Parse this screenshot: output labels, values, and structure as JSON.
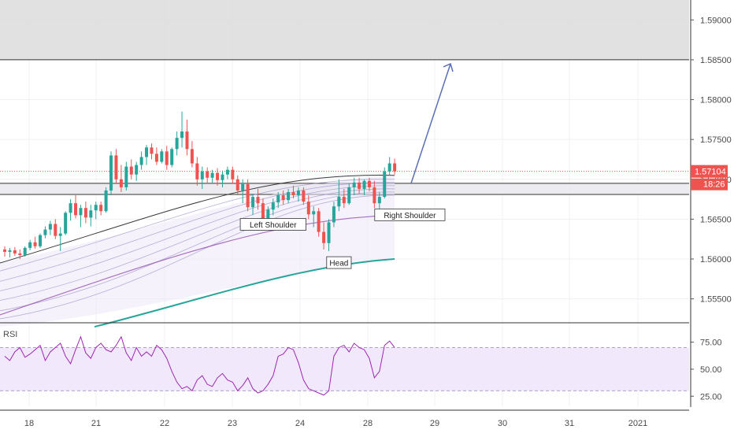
{
  "chart_data": [
    {
      "type": "candlestick",
      "title": "",
      "xlabel": "",
      "ylabel": "",
      "ylim": [
        1.552,
        1.5925
      ],
      "x_ticks": [
        "18",
        "21",
        "22",
        "23",
        "24",
        "28",
        "29",
        "30",
        "31",
        "2021"
      ],
      "y_ticks": [
        "1.55500",
        "1.56000",
        "1.56500",
        "1.57000",
        "1.57500",
        "1.58000",
        "1.58500",
        "1.59000"
      ],
      "last_price_label": "1.57104",
      "countdown_label": "18:26",
      "grid": true,
      "candles": [
        {
          "o": 1.5612,
          "h": 1.5616,
          "l": 1.5603,
          "c": 1.5609
        },
        {
          "o": 1.5609,
          "h": 1.5614,
          "l": 1.5602,
          "c": 1.5611
        },
        {
          "o": 1.5611,
          "h": 1.5615,
          "l": 1.5604,
          "c": 1.5607
        },
        {
          "o": 1.5607,
          "h": 1.5612,
          "l": 1.56,
          "c": 1.5605
        },
        {
          "o": 1.5605,
          "h": 1.5616,
          "l": 1.5603,
          "c": 1.5614
        },
        {
          "o": 1.5614,
          "h": 1.5624,
          "l": 1.5611,
          "c": 1.5621
        },
        {
          "o": 1.5621,
          "h": 1.5628,
          "l": 1.5613,
          "c": 1.5616
        },
        {
          "o": 1.5616,
          "h": 1.5632,
          "l": 1.5614,
          "c": 1.563
        },
        {
          "o": 1.563,
          "h": 1.5641,
          "l": 1.5626,
          "c": 1.5637
        },
        {
          "o": 1.5637,
          "h": 1.5648,
          "l": 1.563,
          "c": 1.5644
        },
        {
          "o": 1.5644,
          "h": 1.565,
          "l": 1.5625,
          "c": 1.5629
        },
        {
          "o": 1.5629,
          "h": 1.564,
          "l": 1.561,
          "c": 1.5632
        },
        {
          "o": 1.5632,
          "h": 1.566,
          "l": 1.563,
          "c": 1.5658
        },
        {
          "o": 1.5658,
          "h": 1.5675,
          "l": 1.5648,
          "c": 1.567
        },
        {
          "o": 1.567,
          "h": 1.568,
          "l": 1.5651,
          "c": 1.5655
        },
        {
          "o": 1.5655,
          "h": 1.5668,
          "l": 1.564,
          "c": 1.5664
        },
        {
          "o": 1.5664,
          "h": 1.5672,
          "l": 1.5645,
          "c": 1.5652
        },
        {
          "o": 1.5652,
          "h": 1.5668,
          "l": 1.5641,
          "c": 1.5661
        },
        {
          "o": 1.5661,
          "h": 1.5672,
          "l": 1.565,
          "c": 1.5668
        },
        {
          "o": 1.5668,
          "h": 1.5672,
          "l": 1.5655,
          "c": 1.566
        },
        {
          "o": 1.566,
          "h": 1.569,
          "l": 1.5658,
          "c": 1.5686
        },
        {
          "o": 1.5686,
          "h": 1.5735,
          "l": 1.568,
          "c": 1.573
        },
        {
          "o": 1.573,
          "h": 1.5738,
          "l": 1.5695,
          "c": 1.57
        },
        {
          "o": 1.57,
          "h": 1.5718,
          "l": 1.5684,
          "c": 1.569
        },
        {
          "o": 1.569,
          "h": 1.5722,
          "l": 1.5686,
          "c": 1.5716
        },
        {
          "o": 1.5716,
          "h": 1.5725,
          "l": 1.57,
          "c": 1.5706
        },
        {
          "o": 1.5706,
          "h": 1.5722,
          "l": 1.5698,
          "c": 1.5718
        },
        {
          "o": 1.5718,
          "h": 1.5735,
          "l": 1.5712,
          "c": 1.5728
        },
        {
          "o": 1.5728,
          "h": 1.5743,
          "l": 1.5718,
          "c": 1.574
        },
        {
          "o": 1.574,
          "h": 1.5745,
          "l": 1.5725,
          "c": 1.5732
        },
        {
          "o": 1.5732,
          "h": 1.574,
          "l": 1.5718,
          "c": 1.5722
        },
        {
          "o": 1.5722,
          "h": 1.5738,
          "l": 1.572,
          "c": 1.5735
        },
        {
          "o": 1.5735,
          "h": 1.5742,
          "l": 1.5712,
          "c": 1.5718
        },
        {
          "o": 1.5718,
          "h": 1.574,
          "l": 1.5715,
          "c": 1.5738
        },
        {
          "o": 1.5738,
          "h": 1.576,
          "l": 1.573,
          "c": 1.5752
        },
        {
          "o": 1.5752,
          "h": 1.5785,
          "l": 1.574,
          "c": 1.576
        },
        {
          "o": 1.576,
          "h": 1.5775,
          "l": 1.573,
          "c": 1.5738
        },
        {
          "o": 1.5738,
          "h": 1.5748,
          "l": 1.5715,
          "c": 1.572
        },
        {
          "o": 1.572,
          "h": 1.5728,
          "l": 1.5692,
          "c": 1.57
        },
        {
          "o": 1.57,
          "h": 1.5716,
          "l": 1.5688,
          "c": 1.571
        },
        {
          "o": 1.571,
          "h": 1.5715,
          "l": 1.5696,
          "c": 1.5702
        },
        {
          "o": 1.5702,
          "h": 1.5712,
          "l": 1.5695,
          "c": 1.5708
        },
        {
          "o": 1.5708,
          "h": 1.5714,
          "l": 1.5692,
          "c": 1.5699
        },
        {
          "o": 1.5699,
          "h": 1.5711,
          "l": 1.569,
          "c": 1.5706
        },
        {
          "o": 1.5706,
          "h": 1.5716,
          "l": 1.57,
          "c": 1.5712
        },
        {
          "o": 1.5712,
          "h": 1.5716,
          "l": 1.5695,
          "c": 1.57
        },
        {
          "o": 1.57,
          "h": 1.5705,
          "l": 1.568,
          "c": 1.5686
        },
        {
          "o": 1.5686,
          "h": 1.57,
          "l": 1.567,
          "c": 1.5694
        },
        {
          "o": 1.5694,
          "h": 1.57,
          "l": 1.566,
          "c": 1.5665
        },
        {
          "o": 1.5665,
          "h": 1.5682,
          "l": 1.5655,
          "c": 1.5678
        },
        {
          "o": 1.5678,
          "h": 1.5688,
          "l": 1.5662,
          "c": 1.567
        },
        {
          "o": 1.567,
          "h": 1.5676,
          "l": 1.564,
          "c": 1.5648
        },
        {
          "o": 1.5648,
          "h": 1.5666,
          "l": 1.5642,
          "c": 1.5662
        },
        {
          "o": 1.5662,
          "h": 1.5676,
          "l": 1.5655,
          "c": 1.5671
        },
        {
          "o": 1.5671,
          "h": 1.5684,
          "l": 1.5664,
          "c": 1.568
        },
        {
          "o": 1.568,
          "h": 1.5686,
          "l": 1.5668,
          "c": 1.5674
        },
        {
          "o": 1.5674,
          "h": 1.5688,
          "l": 1.567,
          "c": 1.5684
        },
        {
          "o": 1.5684,
          "h": 1.5692,
          "l": 1.5676,
          "c": 1.568
        },
        {
          "o": 1.568,
          "h": 1.569,
          "l": 1.5672,
          "c": 1.5686
        },
        {
          "o": 1.5686,
          "h": 1.569,
          "l": 1.5668,
          "c": 1.5672
        },
        {
          "o": 1.5672,
          "h": 1.568,
          "l": 1.565,
          "c": 1.5656
        },
        {
          "o": 1.5656,
          "h": 1.5666,
          "l": 1.564,
          "c": 1.566
        },
        {
          "o": 1.566,
          "h": 1.5664,
          "l": 1.5628,
          "c": 1.5634
        },
        {
          "o": 1.5634,
          "h": 1.5646,
          "l": 1.5612,
          "c": 1.562
        },
        {
          "o": 1.562,
          "h": 1.565,
          "l": 1.561,
          "c": 1.5646
        },
        {
          "o": 1.5646,
          "h": 1.5672,
          "l": 1.564,
          "c": 1.5666
        },
        {
          "o": 1.5666,
          "h": 1.57,
          "l": 1.566,
          "c": 1.5678
        },
        {
          "o": 1.5678,
          "h": 1.5688,
          "l": 1.5664,
          "c": 1.567
        },
        {
          "o": 1.567,
          "h": 1.5695,
          "l": 1.5668,
          "c": 1.569
        },
        {
          "o": 1.569,
          "h": 1.5702,
          "l": 1.568,
          "c": 1.5696
        },
        {
          "o": 1.5696,
          "h": 1.5702,
          "l": 1.5682,
          "c": 1.5688
        },
        {
          "o": 1.5688,
          "h": 1.57,
          "l": 1.568,
          "c": 1.5698
        },
        {
          "o": 1.5698,
          "h": 1.5702,
          "l": 1.5685,
          "c": 1.569
        },
        {
          "o": 1.569,
          "h": 1.5698,
          "l": 1.5664,
          "c": 1.567
        },
        {
          "o": 1.567,
          "h": 1.5684,
          "l": 1.5662,
          "c": 1.5678
        },
        {
          "o": 1.5678,
          "h": 1.5715,
          "l": 1.5676,
          "c": 1.571
        },
        {
          "o": 1.571,
          "h": 1.5728,
          "l": 1.5705,
          "c": 1.572
        },
        {
          "o": 1.572,
          "h": 1.5726,
          "l": 1.5706,
          "c": 1.571
        }
      ],
      "ema_ribbon": [
        {
          "from": 1.5595,
          "to": 1.5705
        },
        {
          "from": 1.5585,
          "to": 1.57
        },
        {
          "from": 1.5572,
          "to": 1.5696
        },
        {
          "from": 1.556,
          "to": 1.5692
        },
        {
          "from": 1.5548,
          "to": 1.5688
        },
        {
          "from": 1.5535,
          "to": 1.5684
        },
        {
          "from": 1.5525,
          "to": 1.568
        }
      ],
      "sma_purple": {
        "from": 1.553,
        "to": 1.5655
      },
      "sma_teal": {
        "from": 1.5515,
        "to": 1.56
      },
      "resistance_zone": {
        "low": 1.585,
        "high": 1.5925
      },
      "neckline_zone": {
        "low": 1.5681,
        "high": 1.5695
      },
      "projection_arrow": {
        "from_price": 1.5695,
        "to_price": 1.5845
      },
      "annotations": [
        {
          "name": "left-shoulder-label",
          "text": "Left Shoulder",
          "price": 1.5643,
          "bar": 53
        },
        {
          "name": "head-label",
          "text": "Head",
          "price": 1.5595,
          "bar": 66
        },
        {
          "name": "right-shoulder-label",
          "text": "Right Shoulder",
          "price": 1.5655,
          "bar": 80
        }
      ]
    },
    {
      "type": "line",
      "title": "",
      "legend_label": "RSI",
      "ylim": [
        15,
        90
      ],
      "y_ticks": [
        "75.00",
        "50.00",
        "25.00"
      ],
      "bands": [
        30,
        70
      ],
      "values": [
        62,
        58,
        66,
        70,
        61,
        64,
        68,
        72,
        58,
        66,
        70,
        74,
        62,
        55,
        68,
        80,
        65,
        60,
        70,
        74,
        68,
        66,
        72,
        80,
        65,
        58,
        70,
        62,
        66,
        62,
        72,
        68,
        60,
        48,
        38,
        32,
        34,
        30,
        40,
        44,
        36,
        34,
        42,
        46,
        40,
        38,
        30,
        35,
        42,
        32,
        28,
        30,
        36,
        44,
        62,
        64,
        70,
        68,
        56,
        40,
        32,
        30,
        28,
        26,
        30,
        62,
        70,
        72,
        66,
        74,
        70,
        68,
        60,
        42,
        48,
        72,
        76,
        70
      ]
    }
  ]
}
